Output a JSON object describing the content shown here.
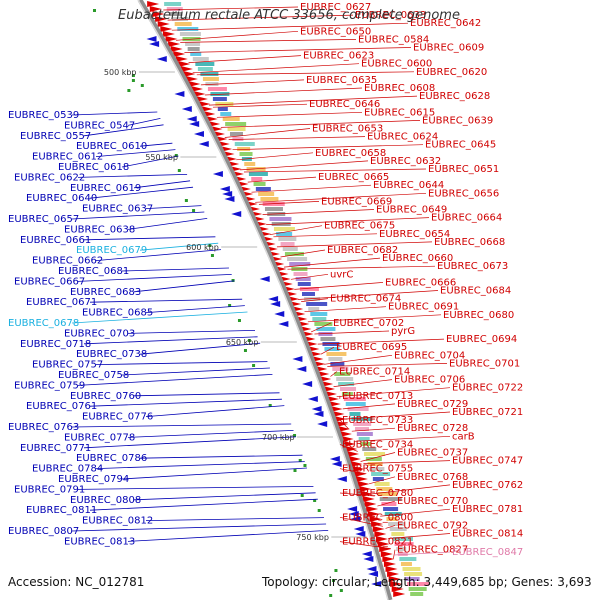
{
  "title": "Eubacterium rectale ATCC 33656, complete genome",
  "accession": "Accession: NC_012781",
  "summary": "Topology: circular; Length: 3,449,685 bp; Genes: 3,693",
  "colors": {
    "backbone": "#8c8c8c",
    "forward_label": "#d00000",
    "reverse_label": "#0000b4",
    "highlight_cyan": "#1ab0e0",
    "highlight_pink": "#e07aa8"
  },
  "ticks": [
    "500 kbp",
    "550 kbp",
    "600 kbp",
    "650 kbp",
    "700 kbp",
    "750 kbp"
  ],
  "right_labels": [
    "EUBREC_0627",
    "EUBREC_0633",
    "EUBREC_0642",
    "EUBREC_0650",
    "EUBREC_0584",
    "EUBREC_0609",
    "EUBREC_0623",
    "EUBREC_0600",
    "EUBREC_0620",
    "EUBREC_0635",
    "EUBREC_0608",
    "EUBREC_0628",
    "EUBREC_0646",
    "EUBREC_0615",
    "EUBREC_0639",
    "EUBREC_0653",
    "EUBREC_0624",
    "EUBREC_0645",
    "EUBREC_0658",
    "EUBREC_0632",
    "EUBREC_0651",
    "EUBREC_0665",
    "EUBREC_0644",
    "EUBREC_0656",
    "EUBREC_0669",
    "EUBREC_0649",
    "EUBREC_0664",
    "EUBREC_0675",
    "EUBREC_0654",
    "EUBREC_0668",
    "EUBREC_0682",
    "EUBREC_0660",
    "EUBREC_0673",
    "uvrC",
    "EUBREC_0666",
    "EUBREC_0684",
    "EUBREC_0674",
    "EUBREC_0691",
    "EUBREC_0680",
    "EUBREC_0702",
    "pyrG",
    "EUBREC_0694",
    "EUBREC_0695",
    "EUBREC_0704",
    "EUBREC_0701",
    "EUBREC_0714",
    "EUBREC_0706",
    "EUBREC_0722",
    "EUBREC_0713",
    "EUBREC_0729",
    "EUBREC_0721",
    "EUBREC_0733",
    "EUBREC_0728",
    "carB",
    "EUBREC_0734",
    "EUBREC_0737",
    "EUBREC_0747",
    "EUBREC_0755",
    "EUBREC_0768",
    "EUBREC_0762",
    "EUBREC_0780",
    "EUBREC_0770",
    "EUBREC_0781",
    "EUBREC_0800",
    "EUBREC_0792",
    "EUBREC_0814",
    "EUBREC_0821",
    "EUBREC_0827",
    "EUBREC_0847"
  ],
  "left_labels": [
    "EUBREC_0539",
    "EUBREC_0547",
    "EUBREC_0557",
    "EUBREC_0610",
    "EUBREC_0612",
    "EUBREC_0618",
    "EUBREC_0622",
    "EUBREC_0619",
    "EUBREC_0640",
    "EUBREC_0637",
    "EUBREC_0657",
    "EUBREC_0638",
    "EUBREC_0661",
    "EUBREC_0679",
    "EUBREC_0662",
    "EUBREC_0681",
    "EUBREC_0667",
    "EUBREC_0683",
    "EUBREC_0671",
    "EUBREC_0685",
    "EUBREC_0678",
    "EUBREC_0703",
    "EUBREC_0718",
    "EUBREC_0738",
    "EUBREC_0757",
    "EUBREC_0758",
    "EUBREC_0759",
    "EUBREC_0760",
    "EUBREC_0761",
    "EUBREC_0776",
    "EUBREC_0763",
    "EUBREC_0778",
    "EUBREC_0771",
    "EUBREC_0786",
    "EUBREC_0784",
    "EUBREC_0794",
    "EUBREC_0791",
    "EUBREC_0808",
    "EUBREC_0811",
    "EUBREC_0812",
    "EUBREC_0807",
    "EUBREC_0813"
  ]
}
